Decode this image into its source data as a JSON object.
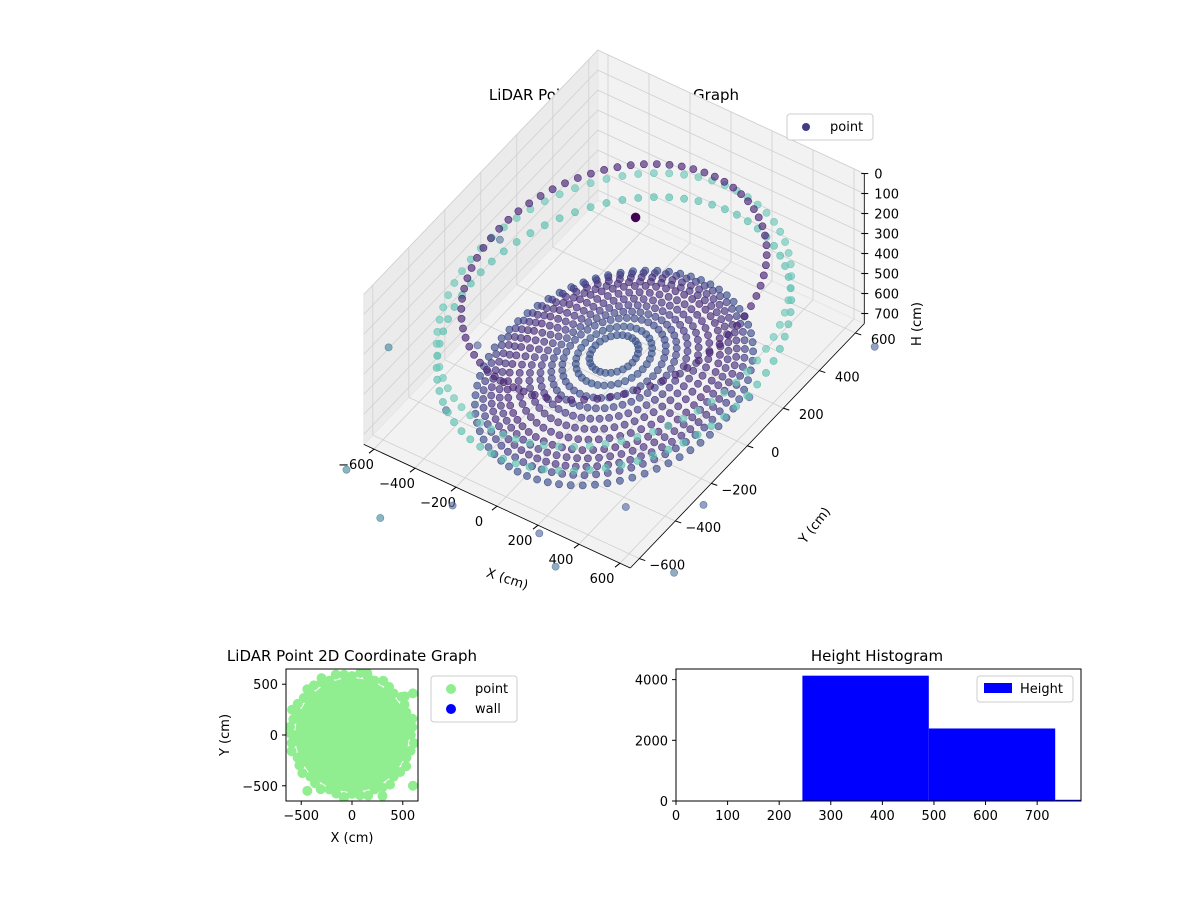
{
  "chart_data": [
    {
      "type": "scatter3d",
      "title": "LiDAR Point 3D Coordinate Graph",
      "xlabel": "X (cm)",
      "ylabel": "Y (cm)",
      "zlabel": "H (cm)",
      "xlim": [
        -650,
        650
      ],
      "ylim": [
        -650,
        650
      ],
      "zlim": [
        0,
        750
      ],
      "z_inverted": true,
      "x_ticks": [
        -600,
        -400,
        -200,
        0,
        200,
        400,
        600
      ],
      "y_ticks": [
        -600,
        -400,
        -200,
        0,
        200,
        400,
        600
      ],
      "z_ticks": [
        0,
        100,
        200,
        300,
        400,
        500,
        600,
        700
      ],
      "legend": {
        "labels": [
          "point"
        ],
        "placement": "top-right"
      },
      "colormap": "viridis",
      "series": [
        {
          "name": "point",
          "rings": [
            {
              "radius": 510,
              "h": 720,
              "count": 70,
              "color": "#3b4d8a"
            },
            {
              "radius": 480,
              "h": 700,
              "count": 70,
              "color": "#413d84"
            },
            {
              "radius": 450,
              "h": 690,
              "count": 70,
              "color": "#46337e"
            },
            {
              "radius": 420,
              "h": 680,
              "count": 64,
              "color": "#46327e"
            },
            {
              "radius": 390,
              "h": 670,
              "count": 60,
              "color": "#482878"
            },
            {
              "radius": 350,
              "h": 660,
              "count": 56,
              "color": "#472d7b"
            },
            {
              "radius": 310,
              "h": 650,
              "count": 52,
              "color": "#46327e"
            },
            {
              "radius": 270,
              "h": 640,
              "count": 48,
              "color": "#443983"
            },
            {
              "radius": 230,
              "h": 630,
              "count": 44,
              "color": "#414487"
            },
            {
              "radius": 190,
              "h": 620,
              "count": 40,
              "color": "#3e4989"
            },
            {
              "radius": 140,
              "h": 610,
              "count": 34,
              "color": "#3b518b"
            },
            {
              "radius": 90,
              "h": 600,
              "count": 26,
              "color": "#3b518b"
            },
            {
              "radius": 560,
              "h": 240,
              "count": 72,
              "color": "#482475"
            },
            {
              "radius": 650,
              "h": 500,
              "count": 70,
              "color": "#5cc0b0"
            },
            {
              "radius": 650,
              "h": 380,
              "count": 70,
              "color": "#6cc8b8"
            }
          ],
          "outliers": [
            {
              "x": -120,
              "y": -760,
              "h": 700,
              "color": "#5a6fa0"
            },
            {
              "x": 250,
              "y": -700,
              "h": 720,
              "color": "#5a6fa0"
            },
            {
              "x": 470,
              "y": -470,
              "h": 700,
              "color": "#5a6fa0"
            },
            {
              "x": 520,
              "y": 160,
              "h": 720,
              "color": "#5a6fa0"
            },
            {
              "x": 700,
              "y": -300,
              "h": 740,
              "color": "#5a6fa0"
            },
            {
              "x": 820,
              "y": -600,
              "h": 740,
              "color": "#5a7fa0"
            },
            {
              "x": 400,
              "y": -780,
              "h": 740,
              "color": "#5a7fa0"
            },
            {
              "x": -820,
              "y": 300,
              "h": 700,
              "color": "#5a7fa0"
            },
            {
              "x": -880,
              "y": -250,
              "h": 750,
              "color": "#4f8ca0"
            },
            {
              "x": -620,
              "y": -780,
              "h": 740,
              "color": "#4f8ca0"
            },
            {
              "x": -350,
              "y": -900,
              "h": 740,
              "color": "#4f8ca0"
            },
            {
              "x": -450,
              "y": -420,
              "h": 700,
              "color": "#5a6fa0"
            },
            {
              "x": 780,
              "y": 560,
              "h": 720,
              "color": "#5a6fa0"
            },
            {
              "x": -560,
              "y": -120,
              "h": 710,
              "color": "#5a6fa0"
            },
            {
              "x": 0,
              "y": 120,
              "h": 30,
              "color": "#440154"
            }
          ]
        }
      ]
    },
    {
      "type": "scatter",
      "title": "LiDAR Point 2D Coordinate Graph",
      "xlabel": "X (cm)",
      "ylabel": "Y (cm)",
      "xlim": [
        -650,
        650
      ],
      "ylim": [
        -650,
        650
      ],
      "x_ticks": [
        -500,
        0,
        500
      ],
      "y_ticks": [
        -500,
        0,
        500
      ],
      "legend": {
        "placement": "outside-right"
      },
      "series": [
        {
          "name": "point",
          "color": "#90ee90",
          "disk_radius": 560
        },
        {
          "name": "wall",
          "color": "#0000ff"
        }
      ],
      "point_outliers": [
        {
          "x": -440,
          "y": -550
        },
        {
          "x": 300,
          "y": -600
        },
        {
          "x": -80,
          "y": -620
        },
        {
          "x": 520,
          "y": 380
        },
        {
          "x": 600,
          "y": 410
        },
        {
          "x": -590,
          "y": 250
        },
        {
          "x": -300,
          "y": 560
        },
        {
          "x": 150,
          "y": 610
        },
        {
          "x": 600,
          "y": -500
        },
        {
          "x": -600,
          "y": 10
        },
        {
          "x": 560,
          "y": 150
        },
        {
          "x": -440,
          "y": 450
        }
      ]
    },
    {
      "type": "histogram",
      "title": "Height Histogram",
      "xlabel": "",
      "ylabel": "",
      "xlim": [
        0,
        785
      ],
      "ylim": [
        0,
        4350
      ],
      "x_ticks": [
        0,
        100,
        200,
        300,
        400,
        500,
        600,
        700
      ],
      "y_ticks": [
        0,
        2000,
        4000
      ],
      "legend": {
        "labels": [
          "Height"
        ],
        "placement": "top-right"
      },
      "color": "#0000ff",
      "bins": [
        {
          "start": 0,
          "end": 245,
          "count": 0
        },
        {
          "start": 245,
          "end": 490,
          "count": 4130
        },
        {
          "start": 490,
          "end": 735,
          "count": 2390
        },
        {
          "start": 735,
          "end": 980,
          "count": 40
        }
      ]
    }
  ]
}
